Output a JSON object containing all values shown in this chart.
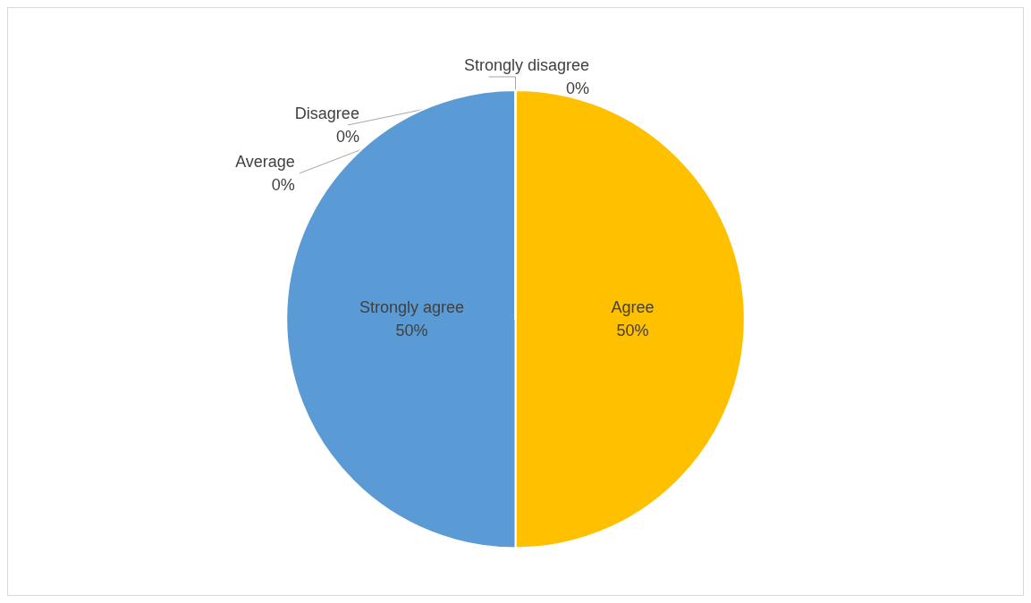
{
  "chart_data": {
    "type": "pie",
    "categories": [
      "Agree",
      "Strongly agree",
      "Strongly disagree",
      "Disagree",
      "Average"
    ],
    "values": [
      50,
      50,
      0,
      0,
      0
    ],
    "value_labels": [
      "50%",
      "50%",
      "0%",
      "0%",
      "0%"
    ],
    "colors": [
      "#ffc000",
      "#5b9bd5",
      "#ed7d31",
      "#a5a5a5",
      "#4472c4"
    ],
    "legend": false
  }
}
